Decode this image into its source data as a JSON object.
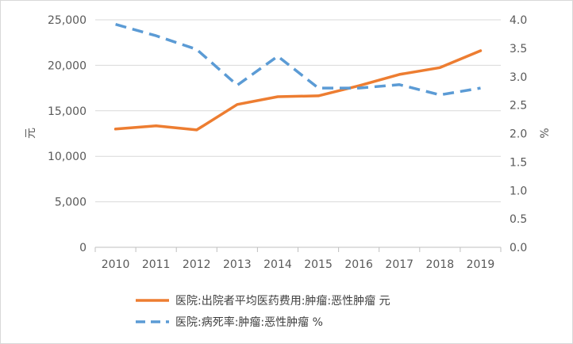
{
  "chart_data": {
    "type": "line",
    "categories": [
      "2010",
      "2011",
      "2012",
      "2013",
      "2014",
      "2015",
      "2016",
      "2017",
      "2018",
      "2019"
    ],
    "y_left": {
      "label": "元",
      "range": [
        0,
        25000
      ],
      "ticks": [
        "0",
        "5,000",
        "10,000",
        "15,000",
        "20,000",
        "25,000"
      ]
    },
    "y_right": {
      "label": "%",
      "range": [
        0,
        4.0
      ],
      "ticks": [
        "0.0",
        "0.5",
        "1.0",
        "1.5",
        "2.0",
        "2.5",
        "3.0",
        "3.5",
        "4.0"
      ]
    },
    "grid": "horizontal",
    "legend_position": "bottom",
    "series": [
      {
        "name": "医院:出院者平均医药费用:肿瘤:恶性肿瘤 元",
        "axis": "left",
        "style": "solid",
        "color": "#ED7D31",
        "values": [
          13000,
          13350,
          12900,
          15700,
          16550,
          16650,
          17750,
          19000,
          19750,
          21600
        ]
      },
      {
        "name": "医院:病死率:肿瘤:恶性肿瘤 %",
        "axis": "right",
        "style": "dashed",
        "color": "#5B9BD5",
        "values": [
          3.92,
          3.72,
          3.48,
          2.85,
          3.36,
          2.8,
          2.8,
          2.86,
          2.68,
          2.8
        ]
      }
    ]
  }
}
